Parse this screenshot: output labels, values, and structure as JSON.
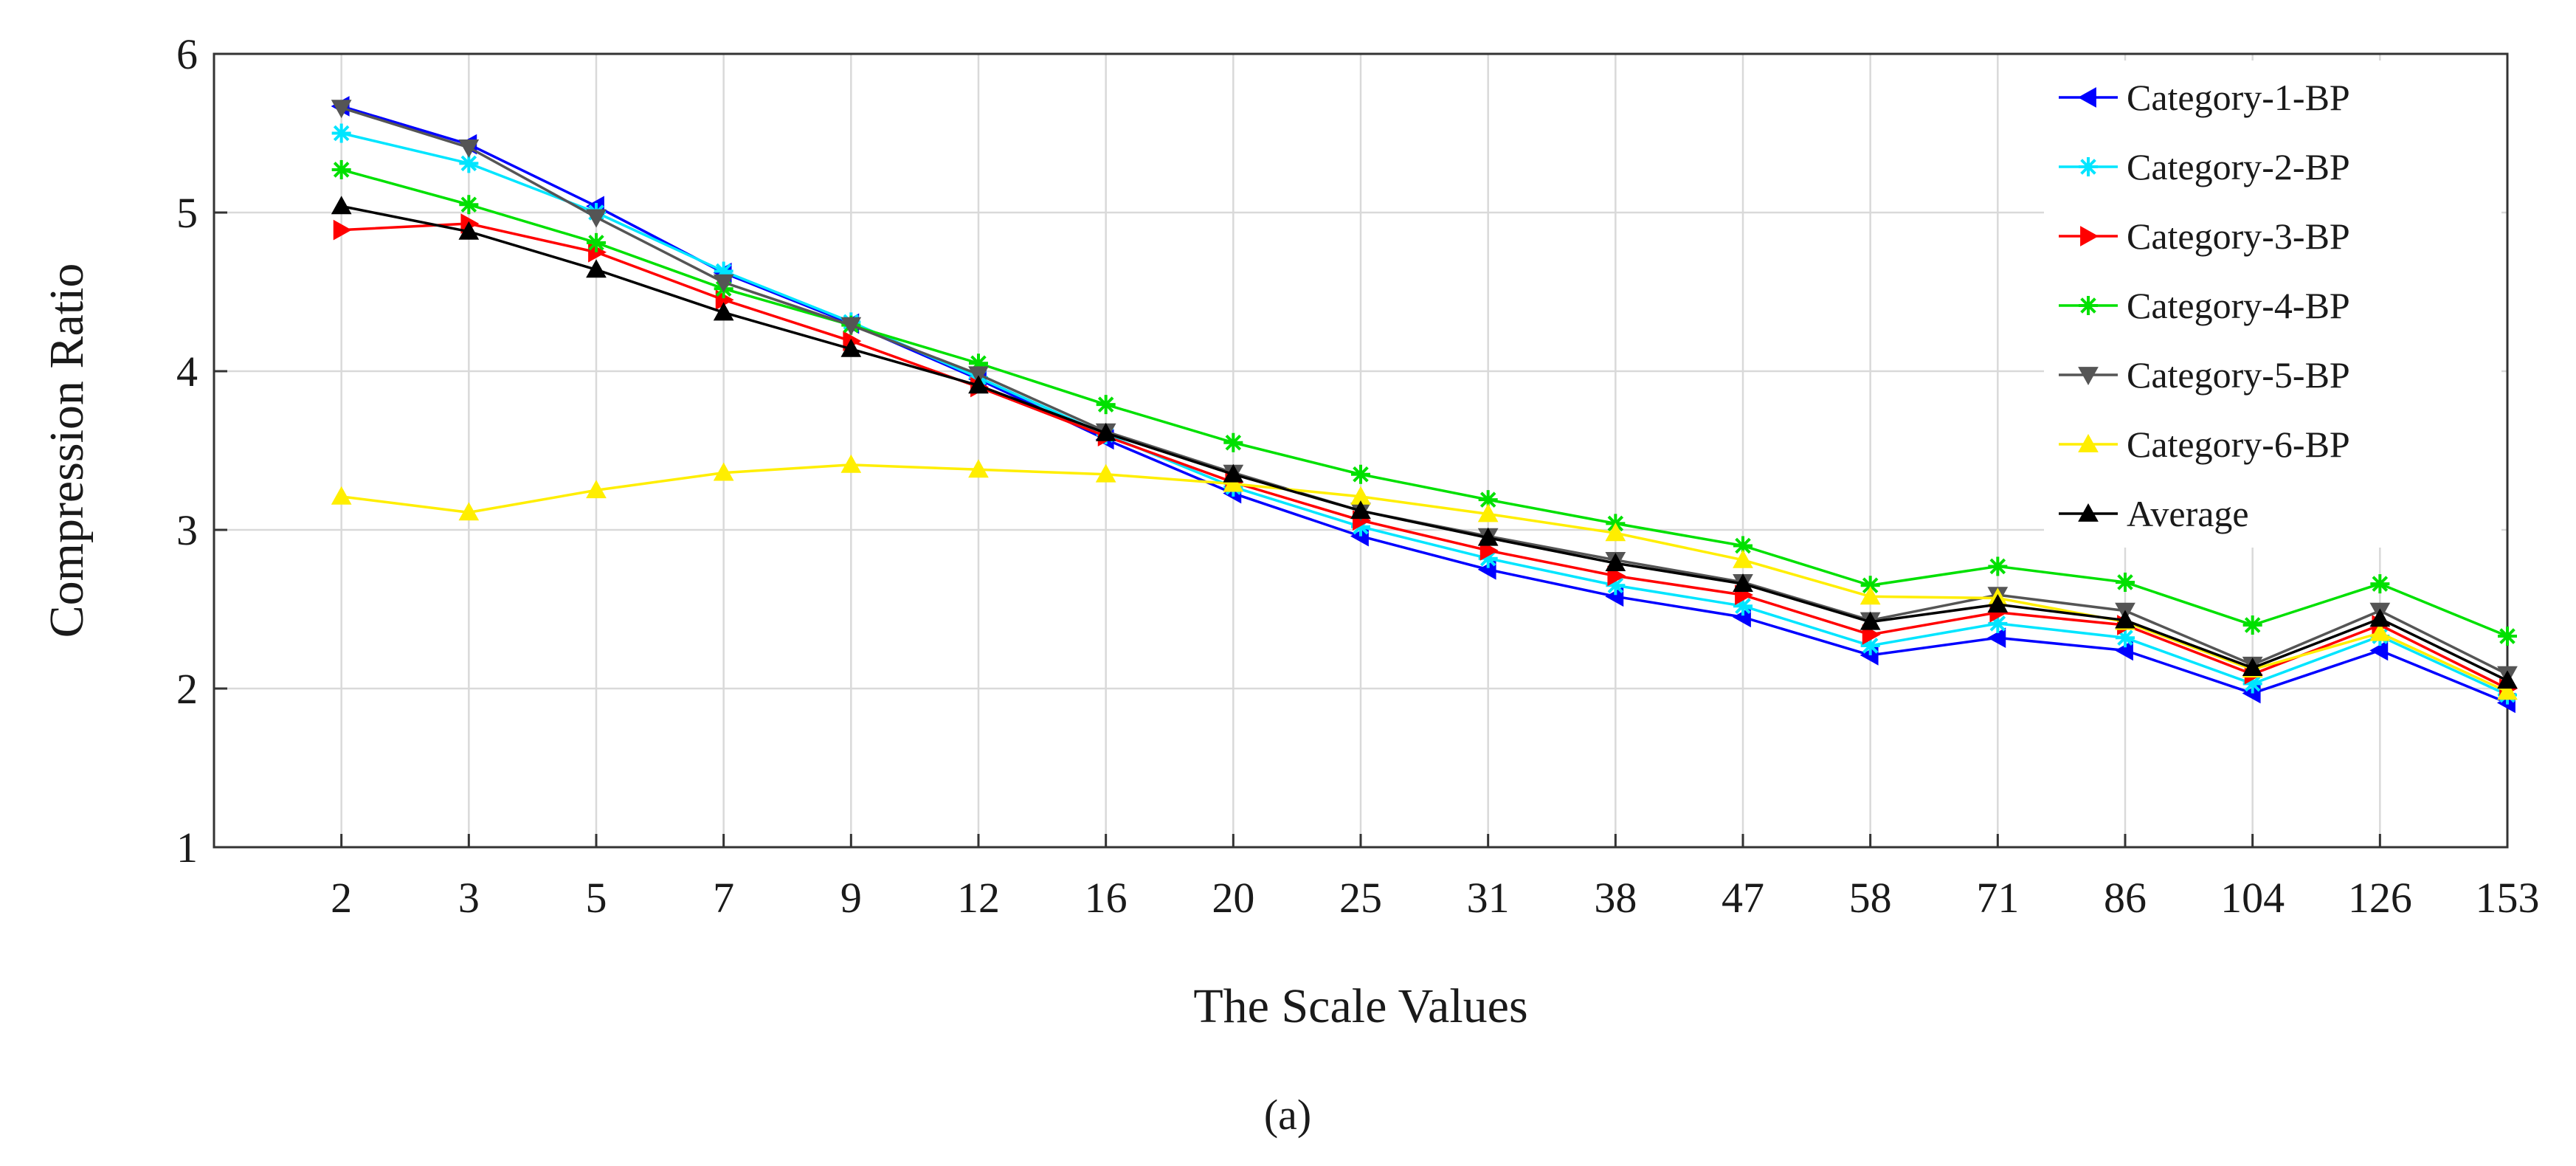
{
  "chart_data": {
    "type": "line",
    "title": "",
    "xlabel": "The Scale Values",
    "ylabel": "Compression Ratio",
    "caption": "(a)",
    "categories": [
      "2",
      "3",
      "5",
      "7",
      "9",
      "12",
      "16",
      "20",
      "25",
      "31",
      "38",
      "47",
      "58",
      "71",
      "86",
      "104",
      "126",
      "153"
    ],
    "ylim": [
      1,
      6
    ],
    "yticks": [
      1,
      2,
      3,
      4,
      5,
      6
    ],
    "grid": true,
    "legend_position": "top-right",
    "series": [
      {
        "name": "Category-1-BP",
        "color": "#0000ff",
        "marker": "triangle-left",
        "values": [
          5.67,
          5.43,
          5.04,
          4.62,
          4.3,
          3.95,
          3.57,
          3.23,
          2.96,
          2.75,
          2.58,
          2.45,
          2.21,
          2.32,
          2.24,
          1.97,
          2.24,
          1.91
        ]
      },
      {
        "name": "Category-2-BP",
        "color": "#00e5ff",
        "marker": "star",
        "values": [
          5.5,
          5.31,
          5.0,
          4.63,
          4.31,
          3.96,
          3.6,
          3.27,
          3.02,
          2.82,
          2.65,
          2.52,
          2.27,
          2.41,
          2.32,
          2.03,
          2.33,
          1.96
        ]
      },
      {
        "name": "Category-3-BP",
        "color": "#ff0000",
        "marker": "triangle-right",
        "values": [
          4.89,
          4.93,
          4.75,
          4.45,
          4.19,
          3.9,
          3.59,
          3.3,
          3.06,
          2.87,
          2.71,
          2.59,
          2.34,
          2.48,
          2.4,
          2.09,
          2.4,
          2.0
        ]
      },
      {
        "name": "Category-4-BP",
        "color": "#00e000",
        "marker": "star",
        "values": [
          5.27,
          5.05,
          4.81,
          4.52,
          4.29,
          4.05,
          3.79,
          3.55,
          3.35,
          3.19,
          3.04,
          2.9,
          2.65,
          2.77,
          2.67,
          2.4,
          2.66,
          2.33
        ]
      },
      {
        "name": "Category-5-BP",
        "color": "#555555",
        "marker": "triangle-down",
        "values": [
          5.66,
          5.41,
          4.97,
          4.56,
          4.29,
          3.98,
          3.62,
          3.36,
          3.12,
          2.96,
          2.81,
          2.67,
          2.43,
          2.59,
          2.49,
          2.15,
          2.49,
          2.09
        ]
      },
      {
        "name": "Category-6-BP",
        "color": "#ffee00",
        "marker": "triangle-up",
        "values": [
          3.21,
          3.11,
          3.25,
          3.36,
          3.41,
          3.38,
          3.35,
          3.29,
          3.21,
          3.1,
          2.98,
          2.81,
          2.58,
          2.57,
          2.42,
          2.12,
          2.35,
          1.98
        ]
      },
      {
        "name": "Average",
        "color": "#000000",
        "marker": "triangle-up",
        "values": [
          5.04,
          4.88,
          4.64,
          4.37,
          4.14,
          3.91,
          3.61,
          3.35,
          3.12,
          2.95,
          2.79,
          2.66,
          2.42,
          2.53,
          2.43,
          2.13,
          2.44,
          2.05
        ]
      }
    ]
  }
}
